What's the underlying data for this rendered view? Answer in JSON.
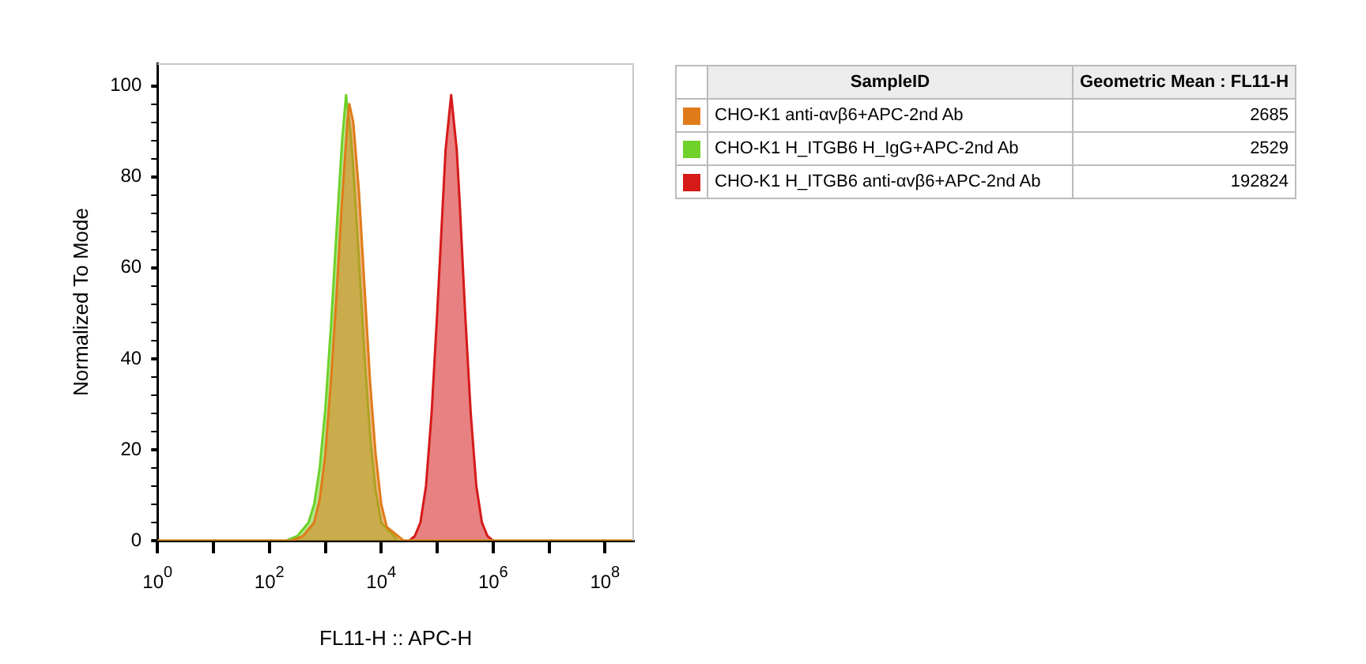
{
  "chart_data": {
    "type": "area",
    "xlabel": "FL11-H :: APC-H",
    "ylabel": "Normalized To Mode",
    "legend_title": "SampleID",
    "annotations": [
      "Geometric Mean : FL11-H",
      "2685",
      "2529",
      "192824"
    ],
    "xlim": [
      1,
      330000000
    ],
    "ylim": [
      0,
      105
    ],
    "log": "x",
    "xticks": [
      {
        "value": 1,
        "label": "10$^{0}$"
      },
      {
        "value": 10,
        "label": null
      },
      {
        "value": 100,
        "label": "10$^{2}$"
      },
      {
        "value": 1000,
        "label": null
      },
      {
        "value": 10000,
        "label": "10$^{4}$"
      },
      {
        "value": 100000,
        "label": null
      },
      {
        "value": 1000000,
        "label": "10$^{6}$"
      },
      {
        "value": 10000000,
        "label": null
      },
      {
        "value": 100000000,
        "label": "10$^{8}$"
      }
    ],
    "yticks": [
      0,
      {
        "value": 4,
        "label": null
      },
      {
        "value": 8,
        "label": null
      },
      {
        "value": 12,
        "label": null
      },
      {
        "value": 16,
        "label": null
      },
      20,
      {
        "value": 24,
        "label": null
      },
      {
        "value": 28,
        "label": null
      },
      {
        "value": 32,
        "label": null
      },
      {
        "value": 36,
        "label": null
      },
      40,
      {
        "value": 44,
        "label": null
      },
      {
        "value": 48,
        "label": null
      },
      {
        "value": 52,
        "label": null
      },
      {
        "value": 56,
        "label": null
      },
      60,
      {
        "value": 64,
        "label": null
      },
      {
        "value": 68,
        "label": null
      },
      {
        "value": 72,
        "label": null
      },
      {
        "value": 76,
        "label": null
      },
      80,
      {
        "value": 84,
        "label": null
      },
      {
        "value": 88,
        "label": null
      },
      {
        "value": 92,
        "label": null
      },
      {
        "value": 96,
        "label": null
      },
      100
    ],
    "grid": false,
    "legend": "right",
    "series": [
      {
        "name": "CHO-K1 anti-αvβ6+APC-2nd Ab",
        "color": "#e07b1a",
        "x": [
          1,
          251,
          398,
          631,
          794,
          1000,
          1259,
          1585,
          1995,
          2512,
          2692,
          3162,
          3981,
          5012,
          6310,
          7943,
          10000,
          12589,
          25119,
          330000000
        ],
        "values": [
          0,
          0,
          1,
          4,
          9,
          19,
          35,
          54,
          75,
          93,
          96,
          92,
          77,
          56,
          35,
          19,
          8,
          3,
          0,
          0
        ]
      },
      {
        "name": "CHO-K1 H_ITGB6 H_IgG+APC-2nd Ab",
        "color": "#6fd12a",
        "x": [
          1,
          200,
          316,
          501,
          631,
          794,
          1000,
          1259,
          1585,
          1995,
          2344,
          2818,
          3162,
          3981,
          5012,
          6310,
          7943,
          10000,
          19953,
          330000000
        ],
        "values": [
          0,
          0,
          1,
          4,
          8,
          16,
          29,
          47,
          68,
          88,
          98,
          90,
          82,
          62,
          41,
          23,
          11,
          4,
          0,
          0
        ]
      },
      {
        "name": "CHO-K1 H_ITGB6 anti-αvβ6+APC-2nd Ab",
        "color": "#d61a1a",
        "x": [
          31623,
          39811,
          50119,
          63096,
          79433,
          100000,
          125893,
          141254,
          177828,
          223872,
          251189,
          316228,
          398107,
          501187,
          630957,
          794328,
          1000000
        ],
        "values": [
          0,
          1,
          4,
          12,
          28,
          50,
          74,
          86,
          98,
          86,
          75,
          50,
          28,
          12,
          4,
          1,
          0
        ]
      }
    ]
  }
}
